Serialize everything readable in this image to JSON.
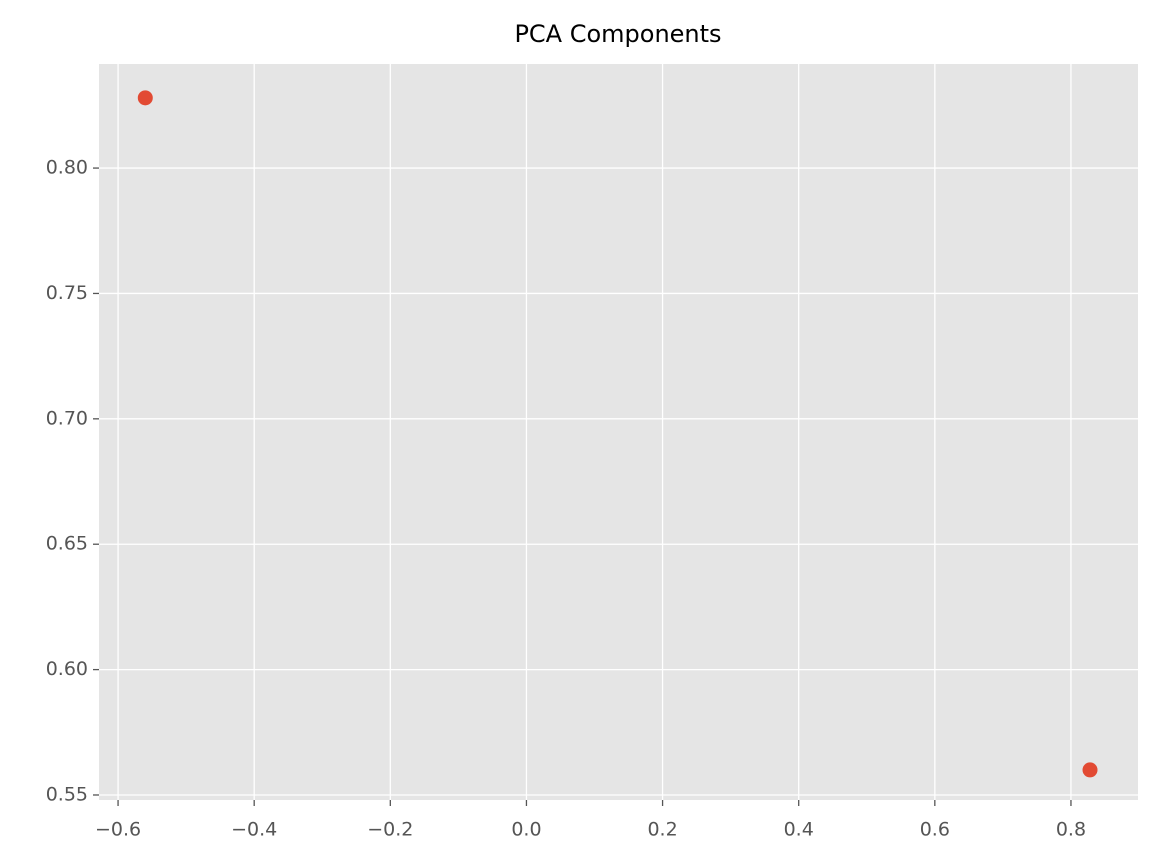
{
  "chart_data": {
    "type": "scatter",
    "title": "PCA Components",
    "series": [
      {
        "color": "#E24A33",
        "x": [
          -0.56,
          0.828
        ],
        "values": [
          0.828,
          0.56
        ]
      }
    ],
    "xlim": [
      -0.628,
      0.8985
    ],
    "ylim": [
      0.548,
      0.8415
    ],
    "xticks": [
      {
        "value": -0.6,
        "label": "−0.6"
      },
      {
        "value": -0.4,
        "label": "−0.4"
      },
      {
        "value": -0.2,
        "label": "−0.2"
      },
      {
        "value": 0,
        "label": "0.0"
      },
      0.2,
      0.4,
      0.6,
      0.8
    ],
    "yticks": [
      0.55,
      {
        "value": 0.6,
        "label": "0.60"
      },
      0.65,
      {
        "value": 0.7,
        "label": "0.70"
      },
      0.75,
      {
        "value": 0.8,
        "label": "0.80"
      }
    ],
    "grid": true,
    "background": "#E5E5E5"
  }
}
